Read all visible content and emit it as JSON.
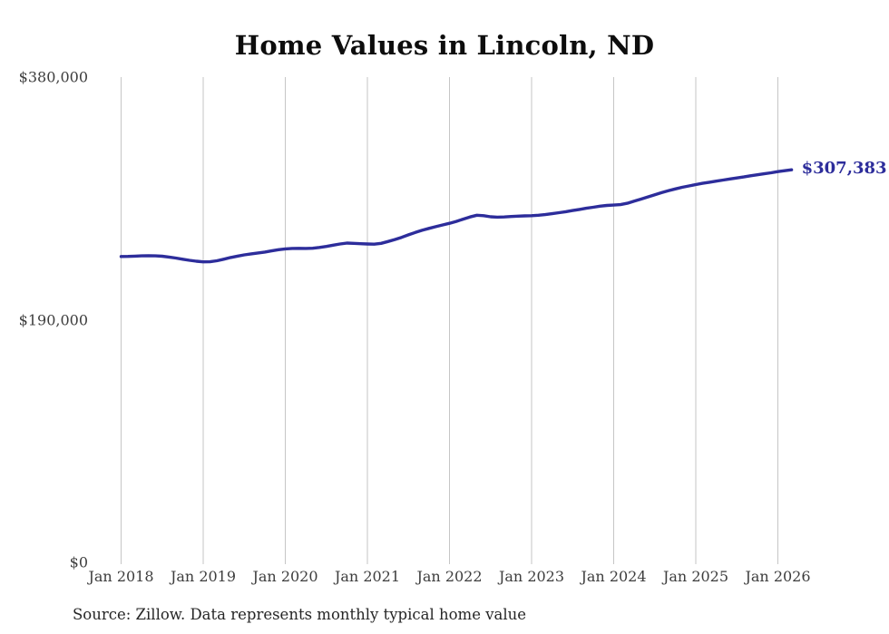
{
  "chart": {
    "source_note": "Source: Zillow. Data represents monthly typical home value"
  },
  "chart_data": {
    "type": "line",
    "title": "Home Values in Lincoln, ND",
    "xlabel": "",
    "ylabel": "",
    "x_tick_labels": [
      "Jan 2018",
      "Jan 2019",
      "Jan 2020",
      "Jan 2021",
      "Jan 2022",
      "Jan 2023",
      "Jan 2024",
      "Jan 2025",
      "Jan 2026"
    ],
    "y_tick_labels": [
      "$0",
      "$190,000",
      "$380,000"
    ],
    "y_tick_values": [
      0,
      190000,
      380000
    ],
    "ylim": [
      0,
      380000
    ],
    "grid": "vertical-only",
    "legend_position": "none",
    "frequency": "monthly",
    "x_start": "Jan 2018",
    "x_end": "Mar 2026",
    "annotation": {
      "text": "$307,383",
      "value": 307383,
      "position": "line-end"
    },
    "colors": {
      "line": "#2d2d9b",
      "end_label": "#2d2d9b",
      "grid": "#c6c6c6",
      "axis_text": "#3d3d3d",
      "title_text": "#0d0d0d",
      "source_text": "#262626",
      "background": "#ffffff"
    },
    "series": [
      {
        "name": "Typical home value",
        "values": [
          239500,
          239600,
          239800,
          240000,
          240100,
          240000,
          239700,
          239100,
          238300,
          237400,
          236500,
          235800,
          235300,
          235400,
          236200,
          237400,
          238700,
          239800,
          240800,
          241600,
          242300,
          243000,
          243900,
          244800,
          245500,
          245800,
          245900,
          245800,
          246000,
          246600,
          247400,
          248400,
          249300,
          250000,
          249800,
          249500,
          249300,
          249200,
          249800,
          251200,
          252800,
          254500,
          256500,
          258300,
          260000,
          261500,
          262900,
          264200,
          265500,
          267000,
          268800,
          270500,
          271800,
          271500,
          270600,
          270300,
          270500,
          270800,
          271100,
          271300,
          271500,
          271800,
          272300,
          273000,
          273800,
          274600,
          275500,
          276400,
          277300,
          278100,
          278900,
          279500,
          279800,
          280100,
          281200,
          282800,
          284500,
          286200,
          287900,
          289500,
          291000,
          292400,
          293700,
          294800,
          295800,
          296800,
          297700,
          298500,
          299400,
          300200,
          301000,
          301800,
          302700,
          303500,
          304300,
          305100,
          306000,
          306700,
          307383
        ]
      }
    ]
  }
}
